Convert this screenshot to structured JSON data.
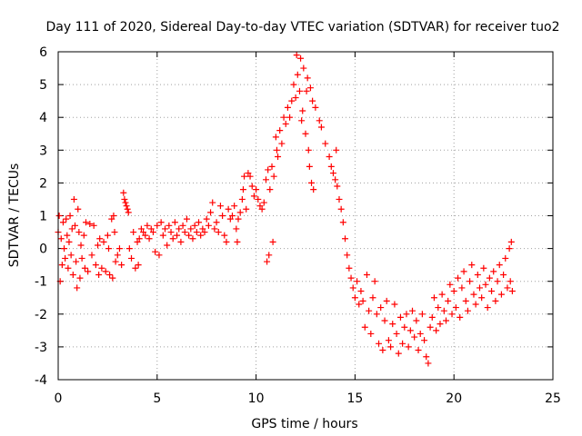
{
  "chart_data": {
    "type": "scatter",
    "title": "Day 111 of 2020, Sidereal Day-to-day VTEC variation (SDTVAR) for receiver tuo2",
    "xlabel": "GPS time / hours",
    "ylabel": "SDTVAR / TECUs",
    "xlim": [
      0,
      25
    ],
    "ylim": [
      -4,
      6
    ],
    "x_ticks": [
      "0",
      "5",
      "10",
      "15",
      "20",
      "25"
    ],
    "y_ticks": [
      "-4",
      "-3",
      "-2",
      "-1",
      "0",
      "1",
      "2",
      "3",
      "4",
      "5",
      "6"
    ],
    "grid": true,
    "marker": "+",
    "colors": {
      "series": "#ff0000",
      "grid": "#a0a0a0",
      "axis": "#000000"
    },
    "series": [
      {
        "name": "SDTVAR",
        "points": [
          [
            0.0,
            0.5
          ],
          [
            0.05,
            1.0
          ],
          [
            0.1,
            -1.0
          ],
          [
            0.15,
            0.3
          ],
          [
            0.2,
            -0.5
          ],
          [
            0.25,
            0.8
          ],
          [
            0.3,
            0.0
          ],
          [
            0.35,
            -0.3
          ],
          [
            0.4,
            0.9
          ],
          [
            0.45,
            0.4
          ],
          [
            0.5,
            -0.6
          ],
          [
            0.55,
            0.2
          ],
          [
            0.6,
            1.0
          ],
          [
            0.65,
            -0.2
          ],
          [
            0.7,
            0.6
          ],
          [
            0.75,
            -0.8
          ],
          [
            0.8,
            1.5
          ],
          [
            0.85,
            0.7
          ],
          [
            0.9,
            -0.4
          ],
          [
            0.95,
            -1.2
          ],
          [
            1.0,
            1.2
          ],
          [
            1.05,
            0.5
          ],
          [
            1.1,
            -0.9
          ],
          [
            1.15,
            0.1
          ],
          [
            1.2,
            -0.3
          ],
          [
            1.3,
            0.4
          ],
          [
            1.35,
            -0.6
          ],
          [
            1.4,
            0.8
          ],
          [
            1.5,
            -0.7
          ],
          [
            1.6,
            0.75
          ],
          [
            1.7,
            -0.2
          ],
          [
            1.8,
            0.7
          ],
          [
            1.9,
            -0.5
          ],
          [
            2.0,
            0.1
          ],
          [
            2.05,
            -0.8
          ],
          [
            2.1,
            0.3
          ],
          [
            2.2,
            -0.6
          ],
          [
            2.3,
            0.2
          ],
          [
            2.4,
            -0.7
          ],
          [
            2.5,
            0.4
          ],
          [
            2.55,
            0.0
          ],
          [
            2.6,
            -0.8
          ],
          [
            2.7,
            0.9
          ],
          [
            2.75,
            -0.9
          ],
          [
            2.8,
            1.0
          ],
          [
            2.85,
            0.5
          ],
          [
            2.9,
            -0.4
          ],
          [
            3.0,
            -0.2
          ],
          [
            3.1,
            0.0
          ],
          [
            3.2,
            -0.5
          ],
          [
            3.3,
            1.7
          ],
          [
            3.35,
            1.5
          ],
          [
            3.4,
            1.4
          ],
          [
            3.45,
            1.3
          ],
          [
            3.5,
            1.2
          ],
          [
            3.55,
            1.1
          ],
          [
            3.6,
            0.0
          ],
          [
            3.7,
            -0.3
          ],
          [
            3.8,
            0.5
          ],
          [
            3.9,
            -0.6
          ],
          [
            4.0,
            0.2
          ],
          [
            4.05,
            -0.5
          ],
          [
            4.1,
            0.3
          ],
          [
            4.2,
            0.6
          ],
          [
            4.3,
            0.5
          ],
          [
            4.4,
            0.4
          ],
          [
            4.5,
            0.7
          ],
          [
            4.6,
            0.3
          ],
          [
            4.7,
            0.6
          ],
          [
            4.8,
            0.5
          ],
          [
            4.9,
            -0.1
          ],
          [
            5.0,
            0.7
          ],
          [
            5.1,
            -0.2
          ],
          [
            5.2,
            0.8
          ],
          [
            5.3,
            0.4
          ],
          [
            5.4,
            0.6
          ],
          [
            5.5,
            0.1
          ],
          [
            5.6,
            0.7
          ],
          [
            5.7,
            0.5
          ],
          [
            5.8,
            0.3
          ],
          [
            5.9,
            0.8
          ],
          [
            6.0,
            0.4
          ],
          [
            6.1,
            0.6
          ],
          [
            6.2,
            0.2
          ],
          [
            6.3,
            0.7
          ],
          [
            6.4,
            0.5
          ],
          [
            6.5,
            0.9
          ],
          [
            6.6,
            0.4
          ],
          [
            6.7,
            0.6
          ],
          [
            6.8,
            0.3
          ],
          [
            6.9,
            0.7
          ],
          [
            7.0,
            0.5
          ],
          [
            7.1,
            0.8
          ],
          [
            7.2,
            0.4
          ],
          [
            7.3,
            0.6
          ],
          [
            7.4,
            0.5
          ],
          [
            7.5,
            0.9
          ],
          [
            7.6,
            0.7
          ],
          [
            7.7,
            1.1
          ],
          [
            7.8,
            1.4
          ],
          [
            7.9,
            0.6
          ],
          [
            8.0,
            0.8
          ],
          [
            8.1,
            0.5
          ],
          [
            8.2,
            1.3
          ],
          [
            8.3,
            1.0
          ],
          [
            8.4,
            0.4
          ],
          [
            8.5,
            0.2
          ],
          [
            8.6,
            1.2
          ],
          [
            8.7,
            0.9
          ],
          [
            8.8,
            1.0
          ],
          [
            8.9,
            1.3
          ],
          [
            9.0,
            0.6
          ],
          [
            9.05,
            0.2
          ],
          [
            9.1,
            0.9
          ],
          [
            9.2,
            1.1
          ],
          [
            9.3,
            1.5
          ],
          [
            9.35,
            1.8
          ],
          [
            9.4,
            2.2
          ],
          [
            9.5,
            1.2
          ],
          [
            9.6,
            2.3
          ],
          [
            9.7,
            2.2
          ],
          [
            9.8,
            1.9
          ],
          [
            9.9,
            1.6
          ],
          [
            10.0,
            1.8
          ],
          [
            10.1,
            1.5
          ],
          [
            10.2,
            1.3
          ],
          [
            10.3,
            1.2
          ],
          [
            10.4,
            1.4
          ],
          [
            10.5,
            2.1
          ],
          [
            10.55,
            -0.4
          ],
          [
            10.6,
            2.4
          ],
          [
            10.65,
            -0.2
          ],
          [
            10.7,
            1.8
          ],
          [
            10.8,
            2.5
          ],
          [
            10.85,
            0.2
          ],
          [
            10.9,
            2.2
          ],
          [
            11.0,
            3.4
          ],
          [
            11.05,
            3.0
          ],
          [
            11.1,
            2.8
          ],
          [
            11.2,
            3.6
          ],
          [
            11.3,
            3.2
          ],
          [
            11.4,
            4.0
          ],
          [
            11.5,
            3.8
          ],
          [
            11.6,
            4.3
          ],
          [
            11.7,
            4.0
          ],
          [
            11.8,
            4.5
          ],
          [
            11.9,
            5.0
          ],
          [
            12.0,
            4.6
          ],
          [
            12.05,
            5.9
          ],
          [
            12.1,
            5.3
          ],
          [
            12.2,
            4.8
          ],
          [
            12.25,
            5.8
          ],
          [
            12.3,
            3.9
          ],
          [
            12.35,
            4.2
          ],
          [
            12.4,
            5.5
          ],
          [
            12.5,
            3.5
          ],
          [
            12.55,
            4.8
          ],
          [
            12.6,
            5.2
          ],
          [
            12.65,
            3.0
          ],
          [
            12.7,
            2.5
          ],
          [
            12.75,
            4.9
          ],
          [
            12.8,
            2.0
          ],
          [
            12.85,
            4.5
          ],
          [
            12.9,
            1.8
          ],
          [
            13.0,
            4.3
          ],
          [
            13.2,
            3.9
          ],
          [
            13.3,
            3.7
          ],
          [
            13.5,
            3.2
          ],
          [
            13.7,
            2.8
          ],
          [
            13.8,
            2.5
          ],
          [
            13.9,
            2.3
          ],
          [
            14.0,
            2.1
          ],
          [
            14.05,
            3.0
          ],
          [
            14.1,
            1.9
          ],
          [
            14.2,
            1.5
          ],
          [
            14.3,
            1.2
          ],
          [
            14.4,
            0.8
          ],
          [
            14.5,
            0.3
          ],
          [
            14.6,
            -0.2
          ],
          [
            14.7,
            -0.6
          ],
          [
            14.8,
            -0.9
          ],
          [
            14.9,
            -1.2
          ],
          [
            15.0,
            -1.5
          ],
          [
            15.1,
            -1.0
          ],
          [
            15.2,
            -1.7
          ],
          [
            15.3,
            -1.3
          ],
          [
            15.4,
            -1.6
          ],
          [
            15.5,
            -2.4
          ],
          [
            15.6,
            -0.8
          ],
          [
            15.7,
            -1.9
          ],
          [
            15.8,
            -2.6
          ],
          [
            15.9,
            -1.5
          ],
          [
            16.0,
            -1.0
          ],
          [
            16.1,
            -2.0
          ],
          [
            16.2,
            -2.9
          ],
          [
            16.3,
            -1.8
          ],
          [
            16.4,
            -3.1
          ],
          [
            16.5,
            -2.2
          ],
          [
            16.6,
            -1.6
          ],
          [
            16.7,
            -2.8
          ],
          [
            16.8,
            -3.0
          ],
          [
            16.9,
            -2.3
          ],
          [
            17.0,
            -1.7
          ],
          [
            17.1,
            -2.6
          ],
          [
            17.2,
            -3.2
          ],
          [
            17.3,
            -2.1
          ],
          [
            17.4,
            -2.9
          ],
          [
            17.5,
            -2.4
          ],
          [
            17.6,
            -2.0
          ],
          [
            17.7,
            -3.0
          ],
          [
            17.8,
            -2.5
          ],
          [
            17.9,
            -1.9
          ],
          [
            18.0,
            -2.7
          ],
          [
            18.1,
            -2.2
          ],
          [
            18.2,
            -3.1
          ],
          [
            18.3,
            -2.6
          ],
          [
            18.4,
            -2.0
          ],
          [
            18.5,
            -2.8
          ],
          [
            18.6,
            -3.3
          ],
          [
            18.7,
            -3.5
          ],
          [
            18.8,
            -2.4
          ],
          [
            18.9,
            -2.1
          ],
          [
            19.0,
            -1.5
          ],
          [
            19.1,
            -2.5
          ],
          [
            19.2,
            -1.8
          ],
          [
            19.3,
            -2.3
          ],
          [
            19.4,
            -1.4
          ],
          [
            19.5,
            -1.9
          ],
          [
            19.6,
            -2.2
          ],
          [
            19.7,
            -1.6
          ],
          [
            19.8,
            -1.1
          ],
          [
            19.9,
            -2.0
          ],
          [
            20.0,
            -1.3
          ],
          [
            20.1,
            -1.8
          ],
          [
            20.2,
            -0.9
          ],
          [
            20.3,
            -2.1
          ],
          [
            20.4,
            -1.2
          ],
          [
            20.5,
            -0.7
          ],
          [
            20.6,
            -1.6
          ],
          [
            20.7,
            -1.9
          ],
          [
            20.8,
            -1.0
          ],
          [
            20.9,
            -0.5
          ],
          [
            21.0,
            -1.4
          ],
          [
            21.1,
            -1.7
          ],
          [
            21.2,
            -0.8
          ],
          [
            21.3,
            -1.2
          ],
          [
            21.4,
            -1.5
          ],
          [
            21.5,
            -0.6
          ],
          [
            21.6,
            -1.1
          ],
          [
            21.7,
            -1.8
          ],
          [
            21.8,
            -0.9
          ],
          [
            21.9,
            -1.3
          ],
          [
            22.0,
            -0.7
          ],
          [
            22.1,
            -1.6
          ],
          [
            22.2,
            -1.0
          ],
          [
            22.3,
            -0.5
          ],
          [
            22.4,
            -1.4
          ],
          [
            22.5,
            -0.8
          ],
          [
            22.6,
            -0.3
          ],
          [
            22.7,
            -1.2
          ],
          [
            22.8,
            0.0
          ],
          [
            22.85,
            -1.0
          ],
          [
            22.9,
            0.2
          ],
          [
            22.95,
            -1.3
          ]
        ]
      }
    ]
  }
}
